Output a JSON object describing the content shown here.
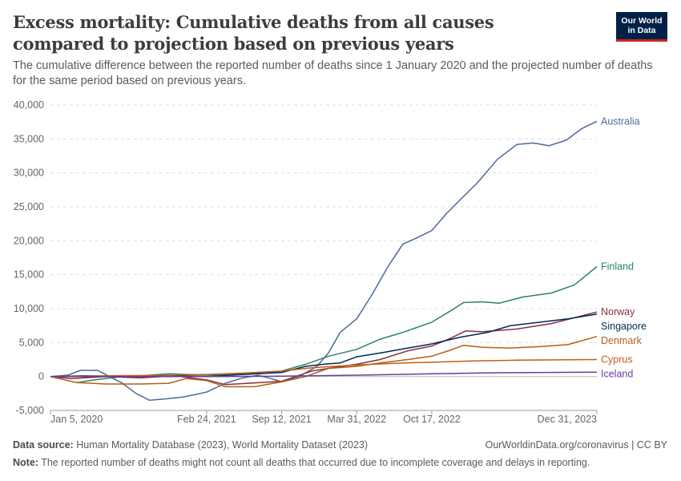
{
  "header": {
    "title": "Excess mortality: Cumulative deaths from all causes compared to projection based on previous years",
    "subtitle": "The cumulative difference between the reported number of deaths since 1 January 2020 and the projected number of deaths for the same period based on previous years.",
    "logo_line1": "Our World",
    "logo_line2": "in Data"
  },
  "footer": {
    "source_label": "Data source:",
    "source_text": "Human Mortality Database (2023), World Mortality Dataset (2023)",
    "credit": "OurWorldinData.org/coronavirus | CC BY",
    "note_label": "Note:",
    "note_text": "The reported number of deaths might not count all deaths that occurred due to incomplete coverage and delays in reporting."
  },
  "chart_data": {
    "type": "line",
    "x_type": "date",
    "xlim": [
      "2020-01-05",
      "2023-12-31"
    ],
    "x_ticks": [
      {
        "date": "2020-01-05",
        "label": "Jan 5, 2020"
      },
      {
        "date": "2021-02-24",
        "label": "Feb 24, 2021"
      },
      {
        "date": "2021-09-12",
        "label": "Sep 12, 2021"
      },
      {
        "date": "2022-03-31",
        "label": "Mar 31, 2022"
      },
      {
        "date": "2022-10-17",
        "label": "Oct 17, 2022"
      },
      {
        "date": "2023-12-31",
        "label": "Dec 31, 2023"
      }
    ],
    "ylim": [
      -5000,
      40000
    ],
    "y_ticks": [
      -5000,
      0,
      5000,
      10000,
      15000,
      20000,
      25000,
      30000,
      35000,
      40000
    ],
    "y_tick_labels": [
      "-5,000",
      "0",
      "5,000",
      "10,000",
      "15,000",
      "20,000",
      "25,000",
      "30,000",
      "35,000",
      "40,000"
    ],
    "grid": "horizontal dashed",
    "legend": "labels at right end of lines",
    "series": [
      {
        "name": "Australia",
        "color": "#4c6a9c",
        "points": [
          [
            "2020-01-05",
            0
          ],
          [
            "2020-02-20",
            200
          ],
          [
            "2020-03-25",
            900
          ],
          [
            "2020-05-10",
            900
          ],
          [
            "2020-06-10",
            0
          ],
          [
            "2020-07-15",
            -1000
          ],
          [
            "2020-08-20",
            -2500
          ],
          [
            "2020-09-25",
            -3500
          ],
          [
            "2020-11-05",
            -3300
          ],
          [
            "2020-12-25",
            -3000
          ],
          [
            "2021-02-24",
            -2300
          ],
          [
            "2021-04-15",
            -1000
          ],
          [
            "2021-05-25",
            -300
          ],
          [
            "2021-07-10",
            200
          ],
          [
            "2021-08-15",
            -300
          ],
          [
            "2021-09-12",
            -800
          ],
          [
            "2021-10-25",
            -100
          ],
          [
            "2021-12-15",
            1500
          ],
          [
            "2022-01-15",
            3500
          ],
          [
            "2022-02-15",
            6500
          ],
          [
            "2022-03-31",
            8500
          ],
          [
            "2022-05-10",
            12000
          ],
          [
            "2022-06-20",
            16000
          ],
          [
            "2022-08-01",
            19500
          ],
          [
            "2022-09-10",
            20500
          ],
          [
            "2022-10-17",
            21500
          ],
          [
            "2022-11-25",
            24000
          ],
          [
            "2022-12-31",
            26000
          ],
          [
            "2023-02-15",
            28500
          ],
          [
            "2023-04-10",
            32000
          ],
          [
            "2023-06-01",
            34200
          ],
          [
            "2023-07-15",
            34400
          ],
          [
            "2023-08-25",
            34000
          ],
          [
            "2023-10-10",
            34800
          ],
          [
            "2023-11-20",
            36500
          ],
          [
            "2023-12-31",
            37600
          ]
        ]
      },
      {
        "name": "Finland",
        "color": "#2c8465",
        "points": [
          [
            "2020-01-05",
            0
          ],
          [
            "2020-03-15",
            -900
          ],
          [
            "2020-05-01",
            -500
          ],
          [
            "2020-07-01",
            -100
          ],
          [
            "2020-09-01",
            100
          ],
          [
            "2020-11-15",
            400
          ],
          [
            "2021-02-24",
            200
          ],
          [
            "2021-05-01",
            300
          ],
          [
            "2021-08-01",
            500
          ],
          [
            "2021-09-12",
            800
          ],
          [
            "2021-11-15",
            1800
          ],
          [
            "2022-01-15",
            3000
          ],
          [
            "2022-03-31",
            4000
          ],
          [
            "2022-06-01",
            5500
          ],
          [
            "2022-08-01",
            6500
          ],
          [
            "2022-10-17",
            8000
          ],
          [
            "2022-12-01",
            9500
          ],
          [
            "2023-01-10",
            10900
          ],
          [
            "2023-03-01",
            11000
          ],
          [
            "2023-04-15",
            10800
          ],
          [
            "2023-06-15",
            11700
          ],
          [
            "2023-09-01",
            12300
          ],
          [
            "2023-11-01",
            13500
          ],
          [
            "2023-12-31",
            16200
          ]
        ]
      },
      {
        "name": "Norway",
        "color": "#883039",
        "points": [
          [
            "2020-01-05",
            0
          ],
          [
            "2020-03-01",
            -300
          ],
          [
            "2020-06-01",
            0
          ],
          [
            "2020-09-01",
            -200
          ],
          [
            "2020-12-01",
            100
          ],
          [
            "2021-02-24",
            -500
          ],
          [
            "2021-04-15",
            -1200
          ],
          [
            "2021-06-15",
            -1000
          ],
          [
            "2021-09-12",
            -700
          ],
          [
            "2021-12-01",
            800
          ],
          [
            "2022-01-15",
            1200
          ],
          [
            "2022-03-31",
            1800
          ],
          [
            "2022-06-01",
            2500
          ],
          [
            "2022-08-15",
            3800
          ],
          [
            "2022-10-17",
            4500
          ],
          [
            "2022-12-01",
            5500
          ],
          [
            "2023-01-15",
            6700
          ],
          [
            "2023-03-01",
            6600
          ],
          [
            "2023-06-01",
            7000
          ],
          [
            "2023-09-01",
            7800
          ],
          [
            "2023-12-31",
            9500
          ]
        ]
      },
      {
        "name": "Singapore",
        "color": "#00295b",
        "points": [
          [
            "2020-01-05",
            0
          ],
          [
            "2020-04-01",
            100
          ],
          [
            "2020-08-01",
            0
          ],
          [
            "2020-12-01",
            100
          ],
          [
            "2021-02-24",
            0
          ],
          [
            "2021-06-01",
            300
          ],
          [
            "2021-09-12",
            600
          ],
          [
            "2021-11-15",
            1500
          ],
          [
            "2022-01-01",
            1800
          ],
          [
            "2022-02-15",
            2000
          ],
          [
            "2022-03-31",
            2900
          ],
          [
            "2022-06-15",
            3600
          ],
          [
            "2022-08-15",
            4200
          ],
          [
            "2022-10-17",
            4800
          ],
          [
            "2023-01-01",
            5800
          ],
          [
            "2023-03-15",
            6500
          ],
          [
            "2023-05-15",
            7500
          ],
          [
            "2023-08-01",
            8000
          ],
          [
            "2023-10-15",
            8500
          ],
          [
            "2023-12-31",
            9200
          ]
        ]
      },
      {
        "name": "Denmark",
        "color": "#b16214",
        "points": [
          [
            "2020-01-05",
            0
          ],
          [
            "2020-03-15",
            -900
          ],
          [
            "2020-06-01",
            -1100
          ],
          [
            "2020-09-01",
            -1100
          ],
          [
            "2020-11-15",
            -1000
          ],
          [
            "2021-01-01",
            -300
          ],
          [
            "2021-02-24",
            -600
          ],
          [
            "2021-04-15",
            -1500
          ],
          [
            "2021-07-01",
            -1500
          ],
          [
            "2021-09-12",
            -800
          ],
          [
            "2021-11-15",
            0
          ],
          [
            "2022-01-15",
            1200
          ],
          [
            "2022-03-31",
            1500
          ],
          [
            "2022-06-01",
            2000
          ],
          [
            "2022-08-15",
            2500
          ],
          [
            "2022-10-17",
            3000
          ],
          [
            "2022-12-01",
            3800
          ],
          [
            "2023-01-10",
            4600
          ],
          [
            "2023-03-01",
            4300
          ],
          [
            "2023-05-15",
            4200
          ],
          [
            "2023-08-01",
            4400
          ],
          [
            "2023-10-15",
            4700
          ],
          [
            "2023-12-31",
            5900
          ]
        ]
      },
      {
        "name": "Cyprus",
        "color": "#c15d19",
        "points": [
          [
            "2020-01-05",
            0
          ],
          [
            "2020-06-01",
            100
          ],
          [
            "2020-12-01",
            200
          ],
          [
            "2021-02-24",
            300
          ],
          [
            "2021-06-01",
            500
          ],
          [
            "2021-09-12",
            800
          ],
          [
            "2021-12-01",
            1300
          ],
          [
            "2022-03-31",
            1700
          ],
          [
            "2022-08-01",
            2000
          ],
          [
            "2022-10-17",
            2100
          ],
          [
            "2023-02-01",
            2300
          ],
          [
            "2023-06-01",
            2400
          ],
          [
            "2023-12-31",
            2500
          ]
        ]
      },
      {
        "name": "Iceland",
        "color": "#6a3d9a",
        "points": [
          [
            "2020-01-05",
            0
          ],
          [
            "2021-02-24",
            0
          ],
          [
            "2021-09-12",
            50
          ],
          [
            "2022-03-31",
            200
          ],
          [
            "2022-10-17",
            400
          ],
          [
            "2023-04-01",
            550
          ],
          [
            "2023-12-31",
            650
          ]
        ]
      }
    ],
    "label_offsets": {
      "Australia": 0,
      "Finland": 0,
      "Norway": 0,
      "Singapore": 0,
      "Denmark": 0,
      "Cyprus": 0,
      "Iceland": 0
    }
  }
}
